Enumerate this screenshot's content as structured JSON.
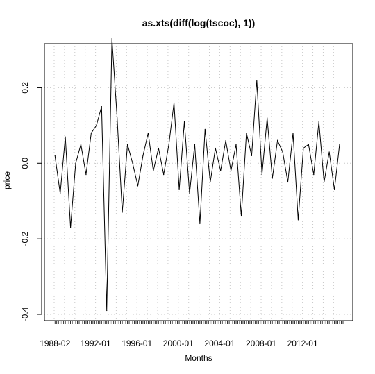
{
  "chart_data": {
    "type": "line",
    "title": "as.xts(diff(log(tscoc), 1))",
    "xlabel": "Months",
    "ylabel": "price",
    "xlim": [
      "1988-01",
      "2015-12"
    ],
    "ylim": [
      -0.4,
      0.3
    ],
    "y_ticks": [
      -0.4,
      -0.2,
      0.0,
      0.2
    ],
    "y_tick_labels": [
      "-0.4",
      "-0.2",
      "0.0",
      "0.2"
    ],
    "x_tick_labels": [
      {
        "date": "1988-02",
        "label": "1988-02"
      },
      {
        "date": "1992-01",
        "label": "1992-01"
      },
      {
        "date": "1996-01",
        "label": "1996-01"
      },
      {
        "date": "2000-01",
        "label": "2000-01"
      },
      {
        "date": "2004-01",
        "label": "2004-01"
      },
      {
        "date": "2008-01",
        "label": "2008-01"
      },
      {
        "date": "2012-01",
        "label": "2012-01"
      }
    ],
    "grid": "dotted vertical lines at each year; dotted horizontal lines at y ticks",
    "series": [
      {
        "x": [
          "1988-02",
          "1988-08",
          "1989-02",
          "1989-08",
          "1990-02",
          "1990-08",
          "1991-02",
          "1991-08",
          "1992-02",
          "1992-08",
          "1993-02",
          "1993-08",
          "1994-02",
          "1994-08",
          "1995-02",
          "1995-08",
          "1996-02",
          "1996-08",
          "1997-02",
          "1997-08",
          "1998-02",
          "1998-08",
          "1999-02",
          "1999-08",
          "2000-02",
          "2000-08",
          "2001-02",
          "2001-08",
          "2002-02",
          "2002-08",
          "2003-02",
          "2003-08",
          "2004-02",
          "2004-08",
          "2005-02",
          "2005-08",
          "2006-02",
          "2006-08",
          "2007-02",
          "2007-08",
          "2008-02",
          "2008-08",
          "2009-02",
          "2009-08",
          "2010-02",
          "2010-08",
          "2011-02",
          "2011-08",
          "2012-02",
          "2012-08",
          "2013-02",
          "2013-08",
          "2014-02",
          "2014-08",
          "2015-02",
          "2015-08"
        ],
        "values": [
          0.02,
          -0.08,
          0.07,
          -0.17,
          0.0,
          0.05,
          -0.03,
          0.08,
          0.1,
          0.15,
          -0.39,
          0.33,
          0.12,
          -0.13,
          0.05,
          0.0,
          -0.06,
          0.02,
          0.08,
          -0.02,
          0.04,
          -0.03,
          0.05,
          0.16,
          -0.07,
          0.11,
          -0.08,
          0.05,
          -0.16,
          0.09,
          -0.05,
          0.04,
          -0.02,
          0.06,
          -0.02,
          0.05,
          -0.14,
          0.08,
          0.02,
          0.22,
          -0.03,
          0.12,
          -0.04,
          0.06,
          0.03,
          -0.05,
          0.08,
          -0.15,
          0.04,
          0.05,
          -0.03,
          0.11,
          -0.05,
          0.03,
          -0.07,
          0.05
        ]
      }
    ]
  }
}
